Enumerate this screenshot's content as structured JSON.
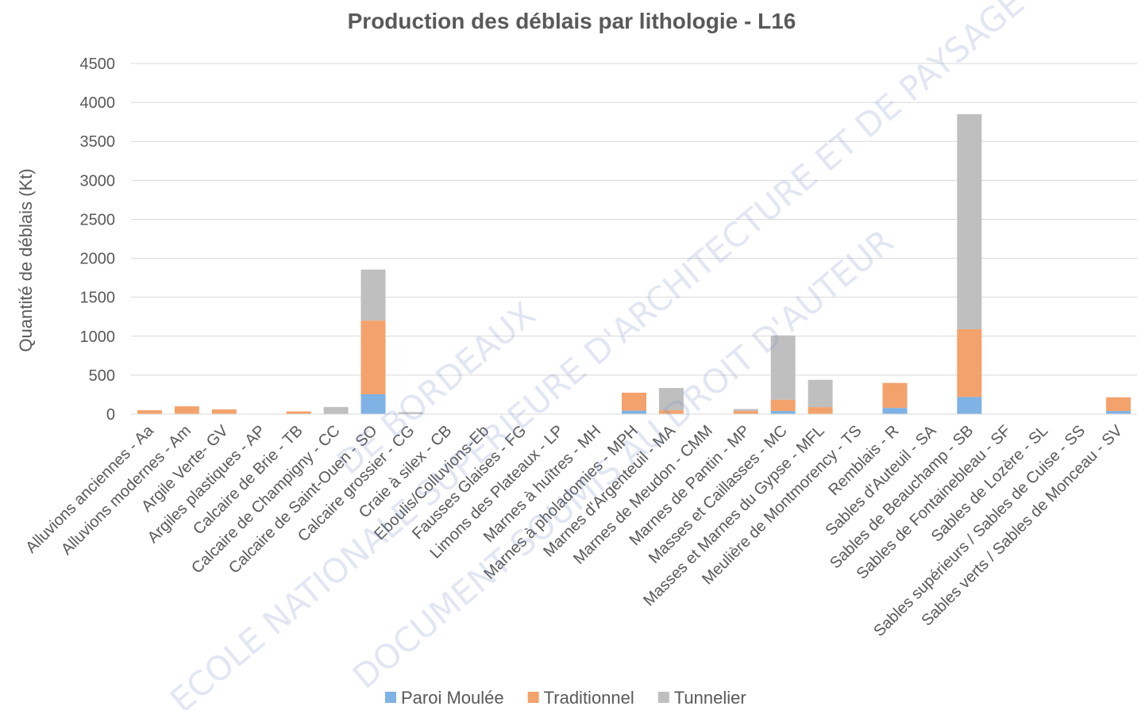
{
  "chart_data": {
    "type": "bar",
    "stacked": true,
    "title": "Production des déblais par lithologie - L16",
    "y_label": "Quantité de déblais (Kt)",
    "categories": [
      "Alluvions anciennes - Aa",
      "Alluvions modernes - Am",
      "Argile Verte- GV",
      "Argiles plastiques - AP",
      "Calcaire de Brie - TB",
      "Calcaire de Champigny - CC",
      "Calcaire de Saint-Ouen - SO",
      "Calcaire grossier - CG",
      "Craie à silex - CB",
      "Eboulis/Colluvions-Eb",
      "Fausses Glaises - FG",
      "Limons des Plateaux - LP",
      "Marnes à huîtres - MH",
      "Marnes à pholadomies - MPH",
      "Marnes d'Argenteuil - MA",
      "Marnes de Meudon - CMM",
      "Marnes de Pantin - MP",
      "Masses et Caillasses - MC",
      "Masses et Marnes du Gypse - MFL",
      "Meulière de Montmorency - TS",
      "Remblais - R",
      "Sables d'Auteuil - SA",
      "Sables de Beauchamp - SB",
      "Sables de Fontainebleau - SF",
      "Sables de Lozère - SL",
      "Sables supérieurs / Sables de Cuise - SS",
      "Sables verts / Sables de Monceau - SV"
    ],
    "series": [
      {
        "name": "Paroi Moulée",
        "color": "#7fb2e5",
        "values": [
          0,
          0,
          0,
          0,
          0,
          0,
          255,
          0,
          0,
          0,
          0,
          0,
          0,
          45,
          0,
          0,
          0,
          40,
          0,
          0,
          80,
          0,
          220,
          0,
          0,
          0,
          40
        ]
      },
      {
        "name": "Traditionnel",
        "color": "#f4a26b",
        "values": [
          50,
          100,
          60,
          0,
          35,
          0,
          945,
          0,
          0,
          0,
          0,
          0,
          0,
          230,
          50,
          0,
          40,
          145,
          90,
          0,
          320,
          0,
          870,
          0,
          0,
          0,
          175
        ]
      },
      {
        "name": "Tunnelier",
        "color": "#bfbfbf",
        "values": [
          0,
          0,
          0,
          0,
          0,
          90,
          655,
          25,
          0,
          0,
          0,
          0,
          0,
          0,
          285,
          0,
          25,
          825,
          350,
          0,
          0,
          0,
          2760,
          0,
          0,
          0,
          0
        ]
      }
    ],
    "ylim": [
      0,
      4500
    ],
    "yticks": [
      0,
      500,
      1000,
      1500,
      2000,
      2500,
      3000,
      3500,
      4000,
      4500
    ],
    "grid": true,
    "legend": "bottom",
    "annotations": [
      "ECOLE NATIONALE SUPERIEURE D'ARCHITECTURE ET DE PAYSAGE",
      "DE BORDEAUX",
      "DOCUMENT SOUMIS AU DROIT D'AUTEUR"
    ]
  }
}
